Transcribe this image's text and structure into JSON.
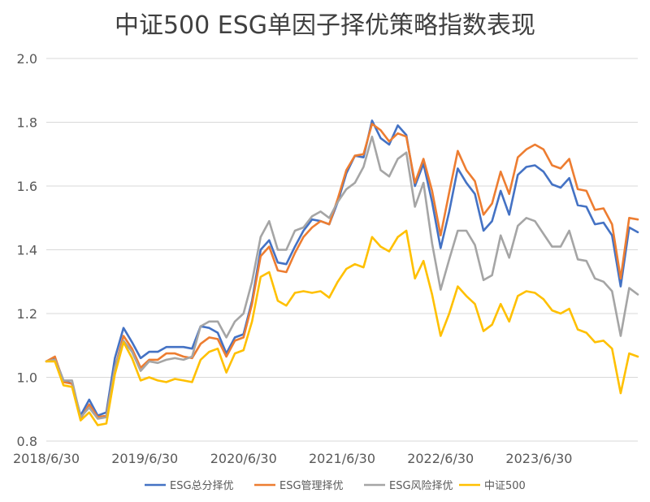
{
  "chart_data": {
    "type": "line",
    "title": "中证500 ESG单因子择优策略指数表现",
    "xlabel": "",
    "ylabel": "",
    "ylim": [
      0.8,
      2.0
    ],
    "yticks": [
      "0.8",
      "1.0",
      "1.2",
      "1.4",
      "1.6",
      "1.8",
      "2.0"
    ],
    "grid": true,
    "legend_position": "bottom",
    "x_start": "2018/6/30",
    "x_end": "2024/6/30",
    "x_ticks": [
      "2018/6/30",
      "2019/6/30",
      "2020/6/30",
      "2021/6/30",
      "2022/6/30",
      "2023/6/30"
    ],
    "series": [
      {
        "name": "ESG总分择优",
        "color": "#4472C4",
        "values": [
          1.05,
          1.06,
          0.99,
          0.98,
          0.88,
          0.93,
          0.88,
          0.89,
          1.06,
          1.155,
          1.11,
          1.06,
          1.08,
          1.08,
          1.095,
          1.095,
          1.095,
          1.09,
          1.16,
          1.155,
          1.14,
          1.075,
          1.125,
          1.135,
          1.24,
          1.4,
          1.43,
          1.36,
          1.355,
          1.41,
          1.46,
          1.495,
          1.49,
          1.48,
          1.55,
          1.64,
          1.695,
          1.69,
          1.805,
          1.75,
          1.73,
          1.79,
          1.76,
          1.6,
          1.67,
          1.55,
          1.405,
          1.52,
          1.655,
          1.61,
          1.575,
          1.46,
          1.49,
          1.585,
          1.51,
          1.635,
          1.66,
          1.665,
          1.645,
          1.605,
          1.595,
          1.625,
          1.54,
          1.535,
          1.48,
          1.485,
          1.445,
          1.285,
          1.47,
          1.455
        ]
      },
      {
        "name": "ESG管理择优",
        "color": "#ED7D31",
        "values": [
          1.05,
          1.065,
          0.985,
          0.98,
          0.87,
          0.915,
          0.875,
          0.88,
          1.03,
          1.13,
          1.09,
          1.03,
          1.055,
          1.055,
          1.075,
          1.075,
          1.065,
          1.06,
          1.105,
          1.125,
          1.12,
          1.065,
          1.115,
          1.125,
          1.23,
          1.38,
          1.41,
          1.335,
          1.33,
          1.39,
          1.44,
          1.47,
          1.49,
          1.48,
          1.56,
          1.65,
          1.695,
          1.7,
          1.795,
          1.775,
          1.74,
          1.765,
          1.755,
          1.61,
          1.685,
          1.585,
          1.445,
          1.58,
          1.71,
          1.65,
          1.615,
          1.51,
          1.545,
          1.645,
          1.575,
          1.69,
          1.715,
          1.73,
          1.715,
          1.665,
          1.655,
          1.685,
          1.59,
          1.585,
          1.525,
          1.53,
          1.48,
          1.31,
          1.5,
          1.495
        ]
      },
      {
        "name": "ESG风险择优",
        "color": "#A5A5A5",
        "values": [
          1.05,
          1.055,
          0.99,
          0.99,
          0.875,
          0.905,
          0.87,
          0.875,
          1.03,
          1.115,
          1.08,
          1.02,
          1.05,
          1.045,
          1.055,
          1.06,
          1.055,
          1.065,
          1.16,
          1.175,
          1.175,
          1.125,
          1.175,
          1.2,
          1.3,
          1.44,
          1.49,
          1.4,
          1.4,
          1.46,
          1.47,
          1.505,
          1.52,
          1.5,
          1.55,
          1.59,
          1.61,
          1.66,
          1.755,
          1.65,
          1.63,
          1.685,
          1.705,
          1.535,
          1.61,
          1.42,
          1.275,
          1.37,
          1.46,
          1.46,
          1.415,
          1.305,
          1.32,
          1.445,
          1.375,
          1.475,
          1.5,
          1.49,
          1.45,
          1.41,
          1.41,
          1.46,
          1.37,
          1.365,
          1.31,
          1.3,
          1.27,
          1.13,
          1.28,
          1.26
        ]
      },
      {
        "name": "中证500",
        "color": "#FFC000",
        "values": [
          1.05,
          1.05,
          0.975,
          0.97,
          0.865,
          0.89,
          0.85,
          0.855,
          1.01,
          1.11,
          1.06,
          0.99,
          1.0,
          0.99,
          0.985,
          0.995,
          0.99,
          0.985,
          1.055,
          1.08,
          1.09,
          1.015,
          1.075,
          1.085,
          1.175,
          1.315,
          1.33,
          1.24,
          1.225,
          1.265,
          1.27,
          1.265,
          1.27,
          1.25,
          1.3,
          1.34,
          1.355,
          1.345,
          1.44,
          1.41,
          1.395,
          1.44,
          1.46,
          1.31,
          1.365,
          1.26,
          1.13,
          1.2,
          1.285,
          1.255,
          1.23,
          1.145,
          1.165,
          1.23,
          1.175,
          1.255,
          1.27,
          1.265,
          1.245,
          1.21,
          1.2,
          1.215,
          1.15,
          1.14,
          1.11,
          1.115,
          1.09,
          0.95,
          1.075,
          1.065
        ]
      }
    ]
  }
}
